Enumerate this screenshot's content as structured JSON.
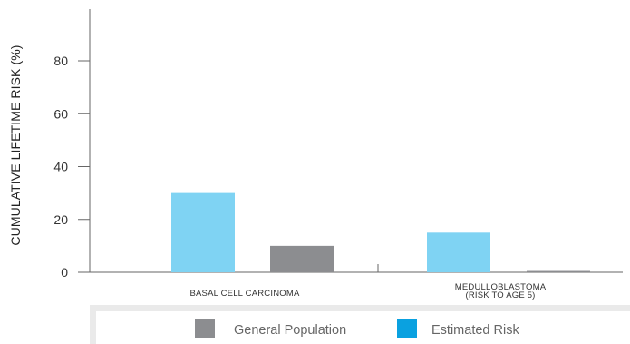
{
  "chart_data": {
    "type": "bar",
    "ylabel": "CUMULATIVE LIFETIME RISK (%)",
    "ylim": [
      0,
      100
    ],
    "yticks": [
      0,
      20,
      40,
      60,
      80
    ],
    "categories": [
      [
        "BASAL CELL CARCINOMA"
      ],
      [
        "MEDULLOBLASTOMA",
        "(RISK TO AGE 5)"
      ]
    ],
    "series": [
      {
        "name": "Estimated Risk",
        "color": "#7fd3f3",
        "values": [
          30,
          15
        ]
      },
      {
        "name": "General Population",
        "color": "#8c8d90",
        "values": [
          10,
          0.5
        ]
      }
    ],
    "legend": {
      "placement": "bottom",
      "items": [
        {
          "label": "General Population",
          "color": "#8c8d90"
        },
        {
          "label": "Estimated Risk",
          "color": "#0aa1e0"
        }
      ]
    },
    "grid": false
  }
}
